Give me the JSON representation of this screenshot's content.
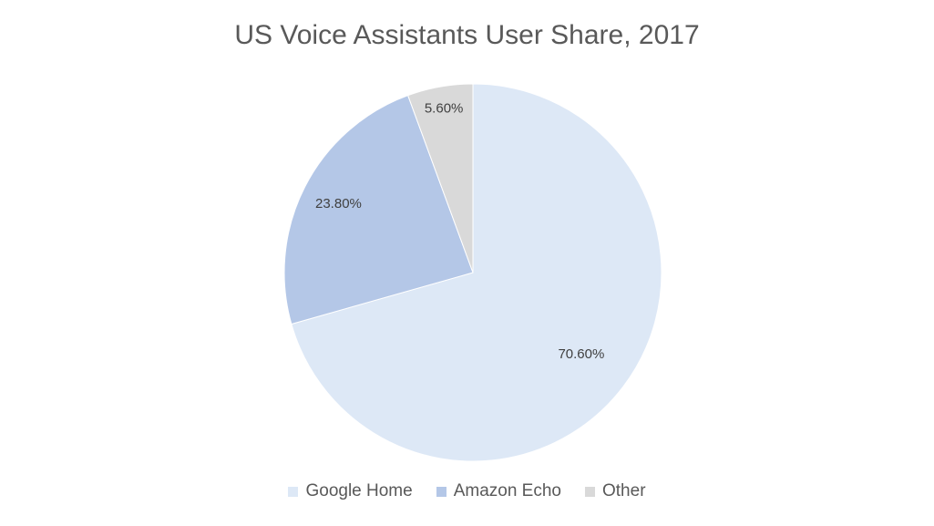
{
  "chart_data": {
    "type": "pie",
    "title": "US Voice Assistants User Share, 2017",
    "categories": [
      "Google Home",
      "Amazon Echo",
      "Other"
    ],
    "values": [
      70.6,
      23.8,
      5.6
    ],
    "value_labels": [
      "70.60%",
      "23.80%",
      "5.60%"
    ],
    "colors": [
      "#dde8f6",
      "#b4c7e7",
      "#d9d9d9"
    ],
    "legend_position": "bottom",
    "start": "top",
    "direction": "clockwise"
  }
}
